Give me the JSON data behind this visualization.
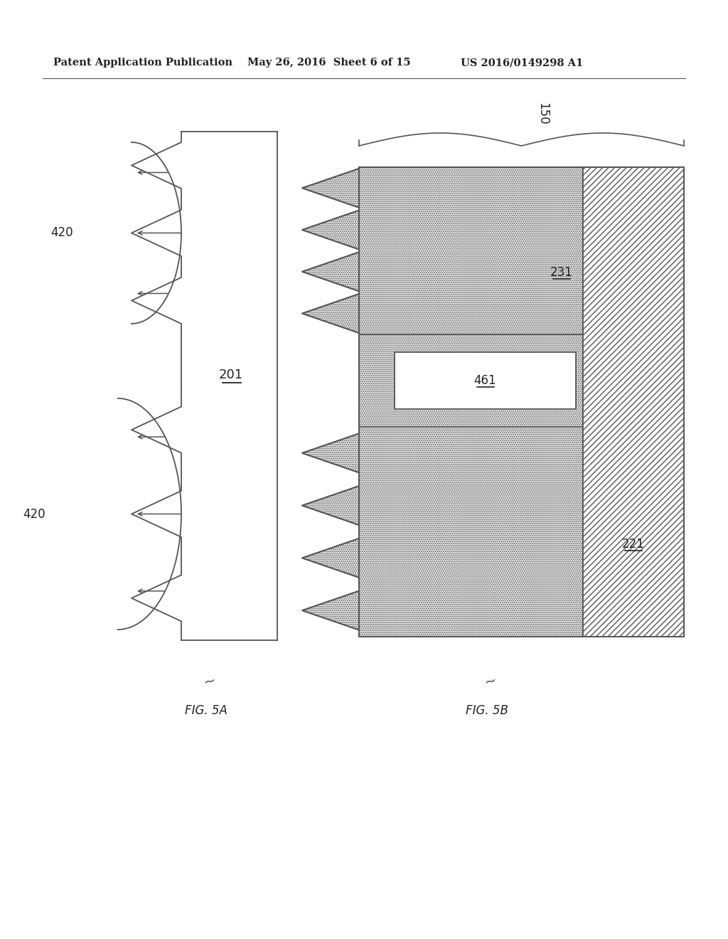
{
  "bg_color": "#ffffff",
  "header_left": "Patent Application Publication",
  "header_mid": "May 26, 2016  Sheet 6 of 15",
  "header_right": "US 2016/0149298 A1",
  "fig5a_label": "FIG. 5A",
  "fig5b_label": "FIG. 5B",
  "label_201": "201",
  "label_420_top": "420",
  "label_420_bot": "420",
  "label_150": "150",
  "label_231": "231",
  "label_221": "221",
  "label_461": "461",
  "line_color": "#555555",
  "text_color": "#222222"
}
